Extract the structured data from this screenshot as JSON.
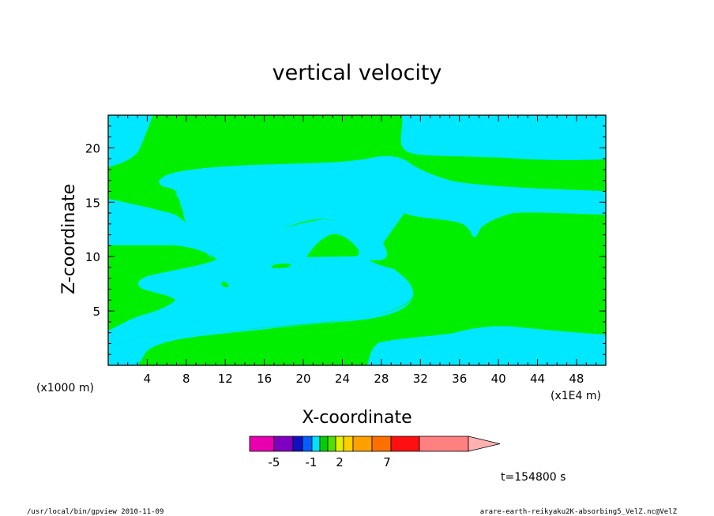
{
  "chart_data": {
    "type": "heatmap",
    "title": "vertical velocity",
    "xlabel": "X-coordinate",
    "ylabel": "Z-coordinate",
    "x_ticks": [
      4,
      8,
      12,
      16,
      20,
      24,
      28,
      32,
      36,
      40,
      44,
      48
    ],
    "y_ticks": [
      5,
      10,
      15,
      20
    ],
    "xlim": [
      0,
      51
    ],
    "ylim": [
      0,
      23
    ],
    "x_scale_note": "(x1E4 m)",
    "y_scale_note": "(x1000 m)",
    "time_label": "t=154800 s",
    "region_colors": {
      "positive": "#00ee00",
      "negative": "#00e8ff"
    },
    "colorbar": {
      "colors": [
        "#e800b0",
        "#8000c0",
        "#1010c0",
        "#0060ff",
        "#00e0ff",
        "#00d000",
        "#50e000",
        "#e0f000",
        "#ffd000",
        "#ffa000",
        "#ff7000",
        "#ff1010",
        "#ff8080",
        "#ffb0b0"
      ],
      "tick_labels": [
        "-5",
        "-1",
        "2",
        "7"
      ]
    }
  },
  "footer": {
    "left": "/usr/local/bin/gpview   2010-11-09",
    "right": "arare-earth-reikyaku2K-absorbing5_VelZ.nc@VelZ"
  }
}
